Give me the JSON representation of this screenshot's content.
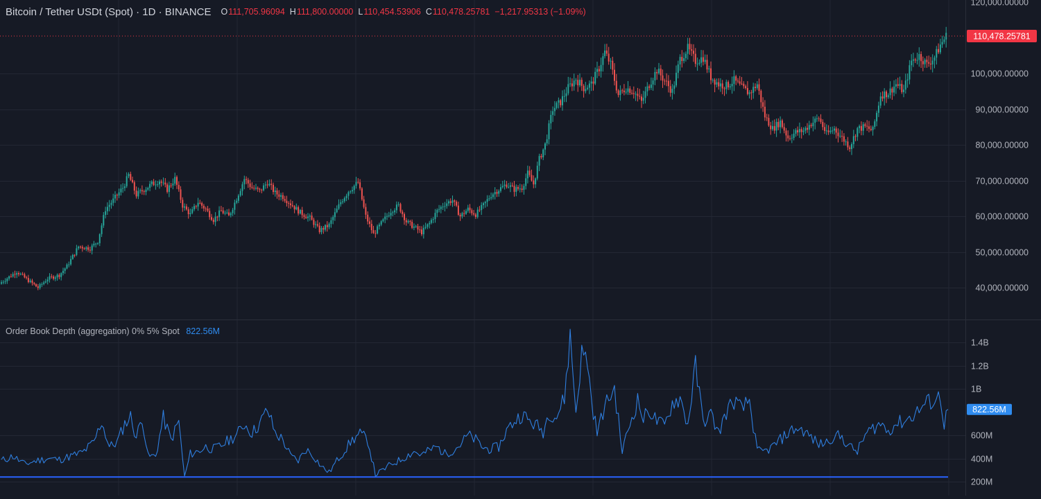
{
  "header": {
    "symbol": "Bitcoin / Tether USDt (Spot) · 1D · BINANCE",
    "open_label": "O",
    "open": "111,705.96094",
    "high_label": "H",
    "high": "111,800.00000",
    "low_label": "L",
    "low": "110,454.53906",
    "close_label": "C",
    "close": "110,478.25781",
    "change": "−1,217.95313 (−1.09%)"
  },
  "indicator": {
    "title": "Order Book Depth (aggregation) 0% 5% Spot",
    "value": "822.56M"
  },
  "colors": {
    "background": "#161a25",
    "grid": "#232734",
    "up": "#26a69a",
    "down": "#ef5350",
    "line": "#2f7fe0",
    "baseline": "#2962ff",
    "price_tag": "#f23645",
    "value_tag": "#2f8cf0"
  },
  "chart_data": [
    {
      "type": "candlestick",
      "title": "Bitcoin / Tether USDt (Spot) · 1D · BINANCE",
      "ylim": [
        30000,
        120000
      ],
      "y_ticks": [
        {
          "value": 120000,
          "label": "120,000.00000"
        },
        {
          "value": 100000,
          "label": "100,000.00000"
        },
        {
          "value": 90000,
          "label": "90,000.00000"
        },
        {
          "value": 80000,
          "label": "80,000.00000"
        },
        {
          "value": 70000,
          "label": "70,000.00000"
        },
        {
          "value": 60000,
          "label": "60,000.00000"
        },
        {
          "value": 50000,
          "label": "50,000.00000"
        },
        {
          "value": 40000,
          "label": "40,000.00000"
        }
      ],
      "last_price": 110478.25781,
      "last_price_label": "110,478.25781",
      "close_anchors": [
        [
          0,
          41500
        ],
        [
          8,
          44500
        ],
        [
          14,
          42000
        ],
        [
          19,
          40000
        ],
        [
          24,
          42500
        ],
        [
          30,
          43500
        ],
        [
          34,
          46000
        ],
        [
          40,
          51500
        ],
        [
          46,
          51000
        ],
        [
          50,
          53000
        ],
        [
          54,
          62000
        ],
        [
          58,
          64500
        ],
        [
          63,
          68000
        ],
        [
          66,
          71500
        ],
        [
          70,
          66000
        ],
        [
          74,
          67500
        ],
        [
          78,
          69000
        ],
        [
          82,
          70000
        ],
        [
          86,
          67500
        ],
        [
          90,
          70500
        ],
        [
          94,
          63000
        ],
        [
          98,
          60500
        ],
        [
          102,
          64000
        ],
        [
          106,
          62000
        ],
        [
          110,
          59000
        ],
        [
          114,
          61500
        ],
        [
          118,
          60000
        ],
        [
          122,
          65000
        ],
        [
          126,
          70500
        ],
        [
          130,
          68000
        ],
        [
          134,
          67000
        ],
        [
          138,
          69500
        ],
        [
          142,
          66500
        ],
        [
          146,
          65500
        ],
        [
          150,
          63500
        ],
        [
          155,
          61000
        ],
        [
          160,
          59500
        ],
        [
          165,
          56000
        ],
        [
          170,
          57500
        ],
        [
          176,
          64000
        ],
        [
          180,
          67000
        ],
        [
          185,
          69500
        ],
        [
          189,
          60000
        ],
        [
          193,
          55000
        ],
        [
          197,
          58000
        ],
        [
          202,
          61500
        ],
        [
          206,
          63000
        ],
        [
          210,
          58500
        ],
        [
          214,
          57000
        ],
        [
          218,
          55500
        ],
        [
          222,
          58000
        ],
        [
          226,
          61500
        ],
        [
          230,
          63500
        ],
        [
          234,
          64500
        ],
        [
          238,
          60000
        ],
        [
          242,
          62000
        ],
        [
          246,
          60500
        ],
        [
          250,
          63000
        ],
        [
          254,
          66000
        ],
        [
          258,
          67500
        ],
        [
          262,
          69000
        ],
        [
          266,
          67500
        ],
        [
          270,
          68000
        ],
        [
          273,
          72000
        ],
        [
          276,
          69000
        ],
        [
          279,
          76000
        ],
        [
          282,
          80000
        ],
        [
          286,
          90000
        ],
        [
          290,
          92000
        ],
        [
          294,
          96000
        ],
        [
          298,
          98500
        ],
        [
          302,
          96000
        ],
        [
          306,
          97000
        ],
        [
          310,
          101500
        ],
        [
          313,
          106000
        ],
        [
          316,
          102500
        ],
        [
          320,
          94000
        ],
        [
          324,
          96000
        ],
        [
          328,
          95000
        ],
        [
          332,
          92000
        ],
        [
          336,
          97000
        ],
        [
          340,
          101000
        ],
        [
          344,
          98000
        ],
        [
          348,
          95000
        ],
        [
          352,
          104000
        ],
        [
          356,
          107000
        ],
        [
          360,
          103500
        ],
        [
          364,
          104500
        ],
        [
          368,
          99000
        ],
        [
          372,
          97000
        ],
        [
          376,
          96500
        ],
        [
          380,
          98000
        ],
        [
          384,
          96000
        ],
        [
          388,
          94500
        ],
        [
          392,
          97000
        ],
        [
          396,
          88000
        ],
        [
          400,
          84500
        ],
        [
          404,
          86500
        ],
        [
          408,
          82000
        ],
        [
          412,
          83500
        ],
        [
          416,
          84000
        ],
        [
          420,
          86000
        ],
        [
          424,
          87500
        ],
        [
          428,
          83000
        ],
        [
          432,
          84500
        ],
        [
          436,
          82000
        ],
        [
          440,
          79500
        ],
        [
          444,
          84500
        ],
        [
          448,
          85000
        ],
        [
          452,
          84000
        ],
        [
          456,
          94000
        ],
        [
          460,
          94500
        ],
        [
          464,
          97000
        ],
        [
          468,
          95000
        ],
        [
          472,
          103500
        ],
        [
          476,
          105000
        ],
        [
          480,
          102500
        ],
        [
          484,
          104500
        ],
        [
          487,
          108000
        ],
        [
          490,
          110478
        ]
      ]
    },
    {
      "type": "line",
      "title": "Order Book Depth (aggregation) 0% 5% Spot",
      "ylim": [
        100000000,
        1500000000
      ],
      "y_ticks": [
        {
          "value": 1400000000,
          "label": "1.4B"
        },
        {
          "value": 1200000000,
          "label": "1.2B"
        },
        {
          "value": 1000000000,
          "label": "1B"
        },
        {
          "value": 600000000,
          "label": "600M"
        },
        {
          "value": 400000000,
          "label": "400M"
        },
        {
          "value": 200000000,
          "label": "200M"
        }
      ],
      "baseline": 240000000,
      "last_value": 822560000,
      "last_value_label": "822.56M",
      "series_anchors_millions": [
        [
          0,
          380
        ],
        [
          6,
          420
        ],
        [
          12,
          350
        ],
        [
          18,
          380
        ],
        [
          24,
          400
        ],
        [
          30,
          390
        ],
        [
          36,
          420
        ],
        [
          42,
          450
        ],
        [
          48,
          540
        ],
        [
          52,
          720
        ],
        [
          56,
          500
        ],
        [
          60,
          540
        ],
        [
          64,
          700
        ],
        [
          67,
          760
        ],
        [
          70,
          580
        ],
        [
          73,
          760
        ],
        [
          76,
          420
        ],
        [
          80,
          420
        ],
        [
          84,
          750
        ],
        [
          88,
          560
        ],
        [
          92,
          720
        ],
        [
          95,
          240
        ],
        [
          98,
          440
        ],
        [
          102,
          460
        ],
        [
          106,
          500
        ],
        [
          110,
          480
        ],
        [
          114,
          510
        ],
        [
          118,
          560
        ],
        [
          122,
          600
        ],
        [
          126,
          700
        ],
        [
          130,
          620
        ],
        [
          134,
          700
        ],
        [
          138,
          820
        ],
        [
          142,
          620
        ],
        [
          146,
          560
        ],
        [
          150,
          420
        ],
        [
          154,
          380
        ],
        [
          158,
          480
        ],
        [
          162,
          420
        ],
        [
          166,
          330
        ],
        [
          170,
          280
        ],
        [
          174,
          380
        ],
        [
          178,
          470
        ],
        [
          182,
          560
        ],
        [
          186,
          610
        ],
        [
          190,
          560
        ],
        [
          194,
          260
        ],
        [
          198,
          300
        ],
        [
          202,
          350
        ],
        [
          206,
          380
        ],
        [
          210,
          420
        ],
        [
          214,
          460
        ],
        [
          218,
          430
        ],
        [
          222,
          470
        ],
        [
          226,
          500
        ],
        [
          230,
          440
        ],
        [
          234,
          470
        ],
        [
          238,
          520
        ],
        [
          242,
          600
        ],
        [
          246,
          560
        ],
        [
          250,
          490
        ],
        [
          254,
          480
        ],
        [
          258,
          500
        ],
        [
          262,
          640
        ],
        [
          266,
          720
        ],
        [
          270,
          780
        ],
        [
          274,
          720
        ],
        [
          278,
          680
        ],
        [
          281,
          630
        ],
        [
          284,
          800
        ],
        [
          288,
          760
        ],
        [
          292,
          920
        ],
        [
          295,
          1450
        ],
        [
          298,
          800
        ],
        [
          301,
          1300
        ],
        [
          304,
          1250
        ],
        [
          306,
          900
        ],
        [
          309,
          620
        ],
        [
          312,
          800
        ],
        [
          315,
          920
        ],
        [
          318,
          1000
        ],
        [
          322,
          460
        ],
        [
          326,
          700
        ],
        [
          330,
          900
        ],
        [
          333,
          740
        ],
        [
          336,
          820
        ],
        [
          340,
          720
        ],
        [
          344,
          680
        ],
        [
          348,
          880
        ],
        [
          352,
          920
        ],
        [
          356,
          690
        ],
        [
          360,
          1190
        ],
        [
          364,
          720
        ],
        [
          368,
          780
        ],
        [
          372,
          620
        ],
        [
          376,
          800
        ],
        [
          380,
          900
        ],
        [
          384,
          820
        ],
        [
          388,
          900
        ],
        [
          392,
          460
        ],
        [
          396,
          460
        ],
        [
          400,
          500
        ],
        [
          404,
          560
        ],
        [
          408,
          620
        ],
        [
          412,
          660
        ],
        [
          416,
          640
        ],
        [
          420,
          580
        ],
        [
          424,
          520
        ],
        [
          428,
          540
        ],
        [
          432,
          600
        ],
        [
          436,
          580
        ],
        [
          440,
          500
        ],
        [
          444,
          460
        ],
        [
          448,
          600
        ],
        [
          452,
          660
        ],
        [
          456,
          700
        ],
        [
          460,
          640
        ],
        [
          464,
          700
        ],
        [
          468,
          720
        ],
        [
          472,
          760
        ],
        [
          476,
          820
        ],
        [
          480,
          880
        ],
        [
          484,
          900
        ],
        [
          487,
          940
        ],
        [
          489,
          700
        ],
        [
          491,
          822
        ]
      ]
    }
  ]
}
